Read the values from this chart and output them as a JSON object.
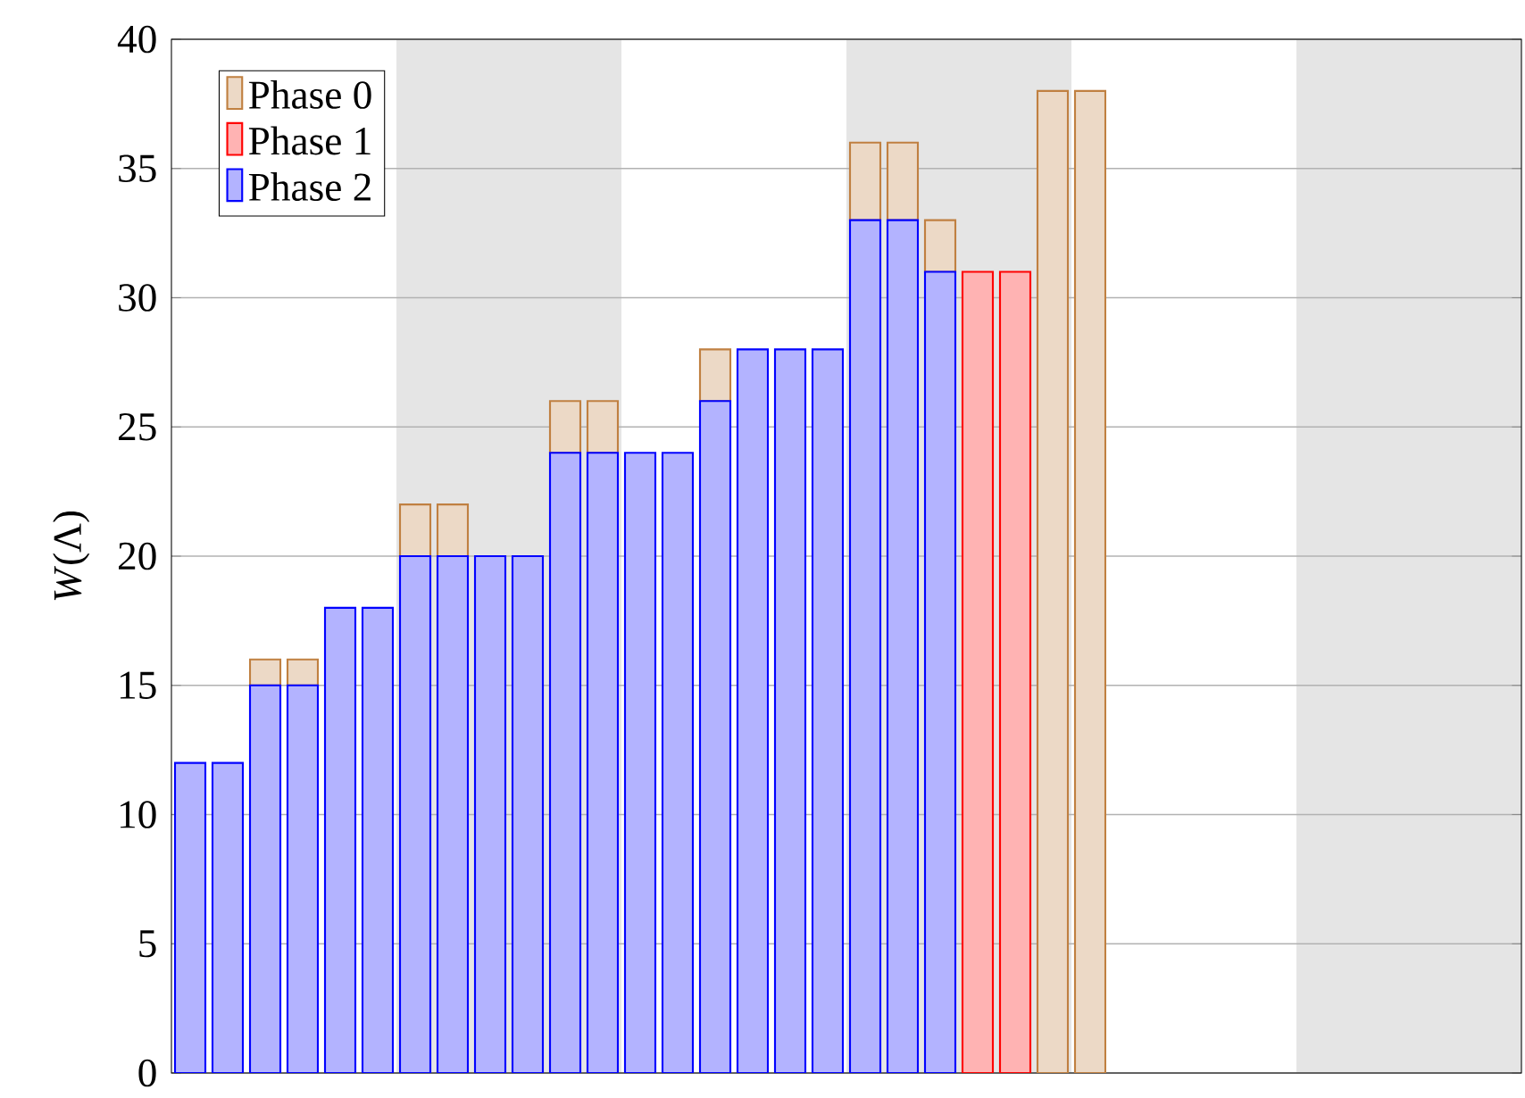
{
  "chart_data": {
    "type": "bar",
    "stacked": true,
    "ylabel": "*W*(Λ)",
    "categories": [
      null,
      null,
      null,
      null,
      null,
      null,
      null,
      null,
      null,
      null,
      null,
      null,
      null,
      null,
      null,
      null,
      null,
      null,
      null,
      null,
      null,
      null,
      null,
      null,
      null,
      null,
      null,
      null,
      null,
      null,
      null,
      null,
      null,
      null,
      null,
      null
    ],
    "series": [
      {
        "name": "Phase 2",
        "color": "#b3b3ff",
        "values": [
          12,
          12,
          15,
          15,
          18,
          18,
          20,
          20,
          20,
          20,
          24,
          24,
          24,
          24,
          26,
          28,
          28,
          28,
          33,
          33,
          31,
          0,
          0,
          0,
          0,
          0,
          0,
          0,
          0,
          0,
          0,
          0,
          0,
          0,
          0,
          0
        ]
      },
      {
        "name": "Phase 1",
        "color": "#ffb3b3",
        "values": [
          0,
          0,
          0,
          0,
          0,
          0,
          0,
          0,
          0,
          0,
          0,
          0,
          0,
          0,
          0,
          0,
          0,
          0,
          0,
          0,
          0,
          31,
          31,
          0,
          0,
          0,
          0,
          0,
          0,
          0,
          0,
          0,
          0,
          0,
          0,
          0
        ]
      },
      {
        "name": "Phase 0",
        "color": "#ecd9c6",
        "values": [
          0,
          0,
          1,
          1,
          0,
          0,
          2,
          2,
          0,
          0,
          2,
          2,
          0,
          0,
          2,
          0,
          0,
          0,
          3,
          3,
          2,
          0,
          0,
          38,
          38,
          0,
          0,
          0,
          0,
          0,
          0,
          0,
          0,
          0,
          0,
          0
        ]
      }
    ],
    "ylim": [
      0,
      40
    ],
    "yticks": [
      0,
      5,
      10,
      15,
      20,
      25,
      30,
      35,
      40
    ],
    "grid": "y",
    "legend": "top left",
    "tick_labels": "y"
  }
}
